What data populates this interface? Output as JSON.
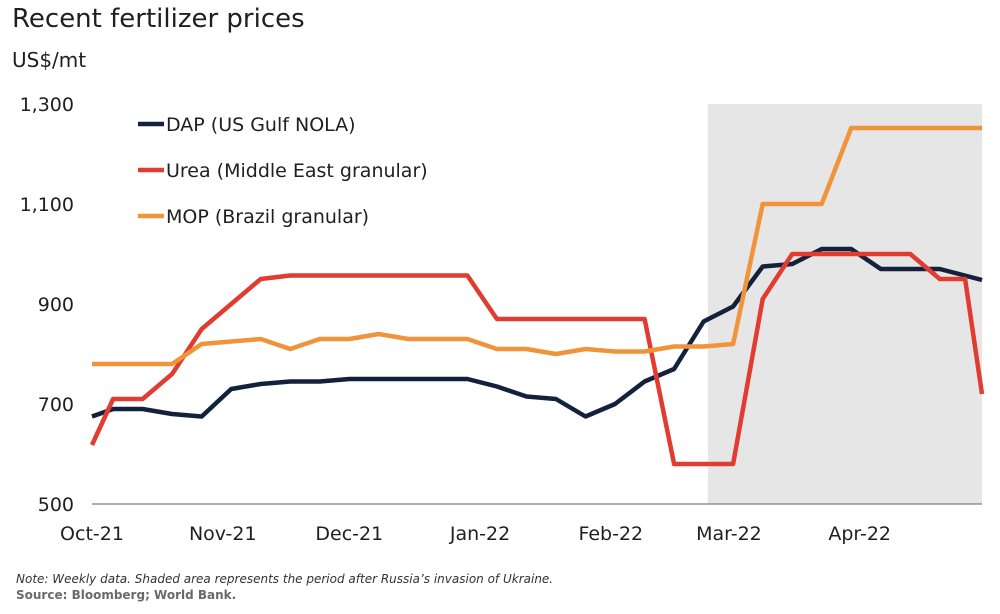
{
  "chart_data": {
    "type": "line",
    "title": "Recent fertilizer prices",
    "ylabel": "US$/mt",
    "xlabel": "",
    "ylim": [
      500,
      1300
    ],
    "y_ticks": [
      500,
      700,
      900,
      1100,
      1300
    ],
    "y_tick_labels": [
      "500",
      "700",
      "900",
      "1,100",
      "1,300"
    ],
    "x_tick_labels": [
      "Oct-21",
      "Nov-21",
      "Dec-21",
      "Jan-22",
      "Feb-22",
      "Mar-22",
      "Apr-22"
    ],
    "x_ticks": [
      "2021-10-01",
      "2021-11-01",
      "2021-12-01",
      "2022-01-01",
      "2022-02-01",
      "2022-03-01",
      "2022-04-01"
    ],
    "x_range": [
      "2021-10-01",
      "2022-04-30"
    ],
    "shaded_region": {
      "start": "2022-02-24",
      "end": "2022-04-30",
      "color": "#e6e6e6"
    },
    "grid": false,
    "legend_position": "top-left",
    "series": [
      {
        "name": "DAP (US Gulf NOLA)",
        "color": "#14213d",
        "points": [
          [
            "2021-10-01",
            675
          ],
          [
            "2021-10-06",
            690
          ],
          [
            "2021-10-13",
            690
          ],
          [
            "2021-10-20",
            680
          ],
          [
            "2021-10-27",
            675
          ],
          [
            "2021-11-03",
            730
          ],
          [
            "2021-11-10",
            740
          ],
          [
            "2021-11-17",
            745
          ],
          [
            "2021-11-24",
            745
          ],
          [
            "2021-12-01",
            750
          ],
          [
            "2021-12-08",
            750
          ],
          [
            "2021-12-15",
            750
          ],
          [
            "2021-12-22",
            750
          ],
          [
            "2021-12-29",
            750
          ],
          [
            "2022-01-05",
            735
          ],
          [
            "2022-01-12",
            715
          ],
          [
            "2022-01-19",
            710
          ],
          [
            "2022-01-26",
            675
          ],
          [
            "2022-02-02",
            700
          ],
          [
            "2022-02-09",
            745
          ],
          [
            "2022-02-16",
            770
          ],
          [
            "2022-02-23",
            865
          ],
          [
            "2022-03-02",
            895
          ],
          [
            "2022-03-09",
            975
          ],
          [
            "2022-03-16",
            980
          ],
          [
            "2022-03-23",
            1010
          ],
          [
            "2022-03-30",
            1010
          ],
          [
            "2022-04-06",
            970
          ],
          [
            "2022-04-13",
            970
          ],
          [
            "2022-04-20",
            970
          ],
          [
            "2022-04-30",
            948
          ]
        ]
      },
      {
        "name": "Urea (Middle East granular)",
        "color": "#e03c31",
        "points": [
          [
            "2021-10-01",
            618
          ],
          [
            "2021-10-06",
            710
          ],
          [
            "2021-10-13",
            710
          ],
          [
            "2021-10-20",
            760
          ],
          [
            "2021-10-27",
            850
          ],
          [
            "2021-11-03",
            900
          ],
          [
            "2021-11-10",
            950
          ],
          [
            "2021-11-17",
            957
          ],
          [
            "2021-11-24",
            957
          ],
          [
            "2021-12-01",
            957
          ],
          [
            "2021-12-08",
            957
          ],
          [
            "2021-12-15",
            957
          ],
          [
            "2021-12-22",
            957
          ],
          [
            "2021-12-29",
            957
          ],
          [
            "2022-01-05",
            870
          ],
          [
            "2022-01-12",
            870
          ],
          [
            "2022-01-19",
            870
          ],
          [
            "2022-01-26",
            870
          ],
          [
            "2022-02-02",
            870
          ],
          [
            "2022-02-09",
            870
          ],
          [
            "2022-02-16",
            580
          ],
          [
            "2022-02-23",
            580
          ],
          [
            "2022-03-02",
            580
          ],
          [
            "2022-03-09",
            910
          ],
          [
            "2022-03-16",
            1000
          ],
          [
            "2022-03-23",
            1000
          ],
          [
            "2022-03-30",
            1000
          ],
          [
            "2022-04-06",
            1000
          ],
          [
            "2022-04-13",
            1000
          ],
          [
            "2022-04-20",
            950
          ],
          [
            "2022-04-26",
            950
          ],
          [
            "2022-04-30",
            720
          ]
        ]
      },
      {
        "name": "MOP (Brazil granular)",
        "color": "#f0943b",
        "points": [
          [
            "2021-10-01",
            780
          ],
          [
            "2021-10-06",
            780
          ],
          [
            "2021-10-13",
            780
          ],
          [
            "2021-10-20",
            780
          ],
          [
            "2021-10-27",
            820
          ],
          [
            "2021-11-03",
            825
          ],
          [
            "2021-11-10",
            830
          ],
          [
            "2021-11-17",
            810
          ],
          [
            "2021-11-24",
            830
          ],
          [
            "2021-12-01",
            830
          ],
          [
            "2021-12-08",
            840
          ],
          [
            "2021-12-15",
            830
          ],
          [
            "2021-12-22",
            830
          ],
          [
            "2021-12-29",
            830
          ],
          [
            "2022-01-05",
            810
          ],
          [
            "2022-01-12",
            810
          ],
          [
            "2022-01-19",
            800
          ],
          [
            "2022-01-26",
            810
          ],
          [
            "2022-02-02",
            805
          ],
          [
            "2022-02-09",
            805
          ],
          [
            "2022-02-16",
            815
          ],
          [
            "2022-02-23",
            815
          ],
          [
            "2022-03-02",
            820
          ],
          [
            "2022-03-09",
            1100
          ],
          [
            "2022-03-16",
            1100
          ],
          [
            "2022-03-23",
            1100
          ],
          [
            "2022-03-30",
            1252
          ],
          [
            "2022-04-06",
            1252
          ],
          [
            "2022-04-13",
            1252
          ],
          [
            "2022-04-20",
            1252
          ],
          [
            "2022-04-30",
            1252
          ]
        ]
      }
    ]
  },
  "footer": {
    "note": "Note: Weekly data. Shaded area represents the period after Russia’s invasion of Ukraine.",
    "source": "Source: Bloomberg; World Bank."
  }
}
